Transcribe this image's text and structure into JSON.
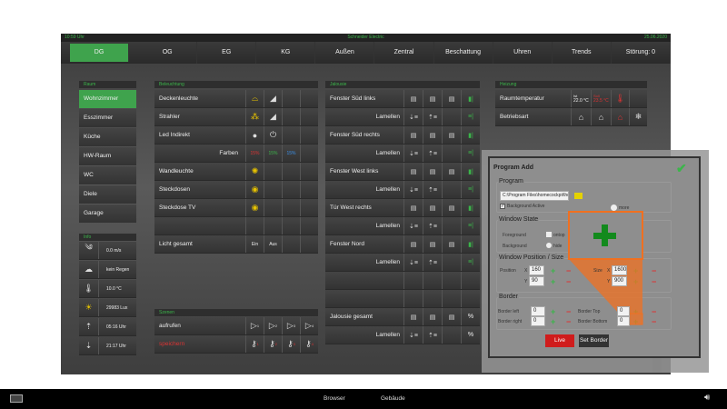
{
  "status": {
    "time": "10:59 Uhr",
    "brand": "Schneider Electric",
    "date": "25.06.2020"
  },
  "nav": {
    "tabs": [
      "DG",
      "OG",
      "EG",
      "KG",
      "Außen",
      "Zentral",
      "Beschattung",
      "Uhren",
      "Trends",
      "Störung: 0"
    ],
    "active": "DG"
  },
  "raum": {
    "title": "Raum",
    "items": [
      "Wohnzimmer",
      "Esszimmer",
      "Küche",
      "HW-Raum",
      "WC",
      "Diele",
      "Garage"
    ]
  },
  "info": {
    "title": "Info",
    "items": [
      {
        "icon": "wind-icon",
        "value": "0.0 m/s"
      },
      {
        "icon": "rain-cloud-icon",
        "value": "kein Regen"
      },
      {
        "icon": "thermometer-icon",
        "value": "10.0 °C"
      },
      {
        "icon": "sun-icon",
        "value": "29983 Lux"
      },
      {
        "icon": "sunrise-icon",
        "value": "05:16 Uhr"
      },
      {
        "icon": "sunset-icon",
        "value": "21:17 Uhr"
      }
    ]
  },
  "beleuchtung": {
    "title": "Beleuchtung",
    "rows": [
      "Deckenleuchte",
      "Strahler",
      "Led Indirekt",
      "Farben",
      "Wandleuchte",
      "Steckdosen",
      "Steckdose TV"
    ],
    "farben": [
      "15%",
      "15%",
      "15%"
    ],
    "gesamt": "Licht gesamt",
    "ein": "Ein",
    "aus": "Aus"
  },
  "szenen": {
    "title": "Szenen",
    "call": "aufrufen",
    "save": "speichern",
    "numbers": [
      "1",
      "2",
      "3",
      "4"
    ]
  },
  "jalousie": {
    "title": "Jalousie",
    "rows": [
      "Fenster Süd links",
      "Lamellen",
      "Fenster Süd rechts",
      "Lamellen",
      "Fenster West links",
      "Lamellen",
      "Tür West rechts",
      "Lamellen",
      "Fenster Nord",
      "Lamellen"
    ],
    "gesamt": "Jalousie gesamt",
    "gesamt_lamellen": "Lamellen",
    "percent": "%"
  },
  "heizung": {
    "title": "Heizung",
    "raumtemp": "Raumtemperatur",
    "ist_label": "Ist",
    "ist": "22.0 °C",
    "soll_label": "Soll",
    "soll": "23.5 °C",
    "betriebsart": "Betriebsart"
  },
  "dialog": {
    "title": "Program Add",
    "program": "Program",
    "path": "C:\\Program Files\\homecockpit\\hc",
    "bg_active": "Background Active",
    "more": "more",
    "window_state": "Window State",
    "foreground": "Foreground",
    "ontop": "ontop",
    "background": "Background",
    "hide": "hide",
    "pos_size": "Window Position / Size",
    "position": "Position",
    "x": "X",
    "y": "Y",
    "pos_x": "160",
    "pos_y": "90",
    "size": "Size",
    "size_x": "1600",
    "size_y": "900",
    "border": "Border",
    "border_left": "Border left",
    "border_right": "Border right",
    "border_top": "Border Top",
    "border_bottom": "Border Bottom",
    "bl": "0",
    "br": "0",
    "bt": "0",
    "bb": "0",
    "live": "Live",
    "set_border": "Set Border"
  },
  "taskbar": {
    "browser": "Browser",
    "gebaeude": "Gebäude"
  },
  "colors": {
    "accent": "#3fa34d",
    "highlight": "#f07020",
    "alert": "#d33"
  }
}
